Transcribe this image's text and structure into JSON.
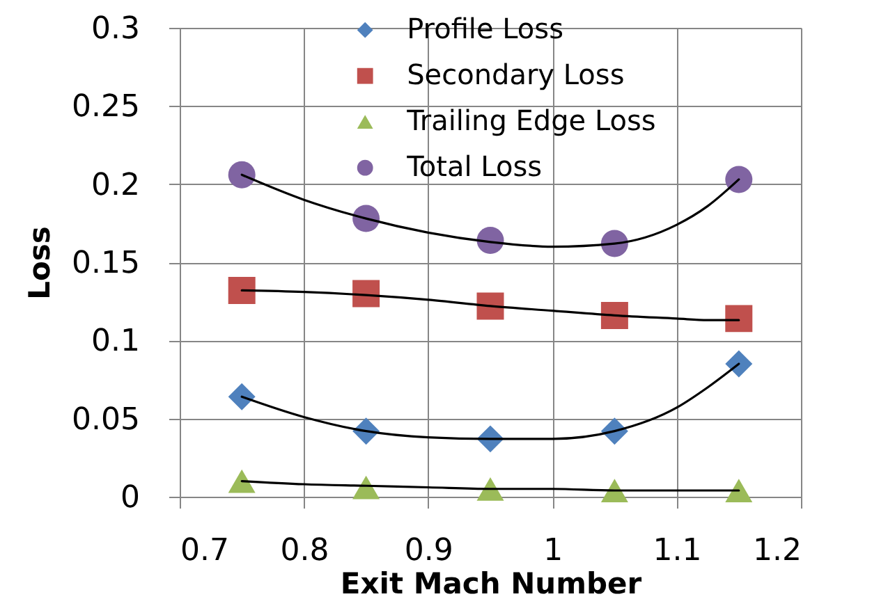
{
  "chart_data": {
    "type": "scatter",
    "xlabel": "Exit Mach Number",
    "ylabel": "Loss",
    "xlim": [
      0.7,
      1.2
    ],
    "ylim": [
      0,
      0.3
    ],
    "xticks": [
      0.7,
      0.8,
      0.9,
      1,
      1.1,
      1.2
    ],
    "yticks": [
      0,
      0.05,
      0.1,
      0.15,
      0.2,
      0.25,
      0.3
    ],
    "grid": true,
    "legend": "top",
    "x": [
      0.75,
      0.85,
      0.95,
      1.05,
      1.15
    ],
    "series": [
      {
        "name": "Profile Loss",
        "color": "#4f81bd",
        "marker": "diamond",
        "values": [
          0.064,
          0.042,
          0.037,
          0.042,
          0.085
        ]
      },
      {
        "name": "Secondary Loss",
        "color": "#c0504d",
        "marker": "square",
        "values": [
          0.132,
          0.13,
          0.122,
          0.116,
          0.114
        ]
      },
      {
        "name": "Trailing Edge Loss",
        "color": "#9bbb59",
        "marker": "triangle",
        "values": [
          0.01,
          0.006,
          0.005,
          0.004,
          0.004
        ]
      },
      {
        "name": "Total Loss",
        "color": "#8064a2",
        "marker": "circle",
        "values": [
          0.206,
          0.178,
          0.164,
          0.162,
          0.203
        ]
      },
      {
        "type": "line",
        "color": "#000000",
        "marker": "none",
        "line_style": "solid",
        "x": [
          0.75,
          0.8,
          0.85,
          0.9,
          0.95,
          1.0,
          1.05,
          1.1,
          1.125,
          1.15
        ],
        "values": [
          0.064,
          0.051,
          0.042,
          0.038,
          0.037,
          0.037,
          0.042,
          0.057,
          0.07,
          0.085
        ]
      },
      {
        "type": "line",
        "color": "#000000",
        "marker": "none",
        "line_style": "solid",
        "x": [
          0.75,
          0.8,
          0.85,
          0.9,
          0.95,
          1.0,
          1.05,
          1.1,
          1.125,
          1.15
        ],
        "values": [
          0.132,
          0.131,
          0.129,
          0.126,
          0.122,
          0.119,
          0.116,
          0.114,
          0.113,
          0.113
        ]
      },
      {
        "type": "line",
        "color": "#000000",
        "marker": "none",
        "line_style": "solid",
        "x": [
          0.75,
          0.8,
          0.85,
          0.9,
          0.95,
          1.0,
          1.05,
          1.1,
          1.125,
          1.15
        ],
        "values": [
          0.01,
          0.008,
          0.007,
          0.006,
          0.005,
          0.005,
          0.004,
          0.004,
          0.004,
          0.004
        ]
      },
      {
        "type": "line",
        "color": "#000000",
        "marker": "none",
        "line_style": "solid",
        "x": [
          0.75,
          0.8,
          0.85,
          0.9,
          0.95,
          1.0,
          1.05,
          1.1,
          1.125,
          1.15
        ],
        "values": [
          0.206,
          0.19,
          0.178,
          0.169,
          0.163,
          0.16,
          0.162,
          0.174,
          0.186,
          0.203
        ]
      }
    ]
  }
}
